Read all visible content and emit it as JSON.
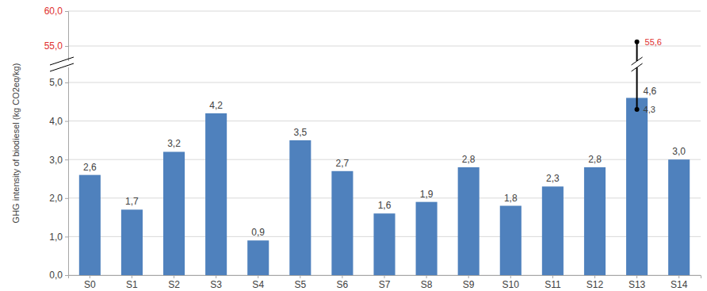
{
  "chart_data": {
    "type": "bar",
    "y_label": "GHG intensity of biodiesel (kg CO2eq/kg)",
    "categories": [
      "S0",
      "S1",
      "S2",
      "S3",
      "S4",
      "S5",
      "S6",
      "S7",
      "S8",
      "S9",
      "S10",
      "S11",
      "S12",
      "S13",
      "S14"
    ],
    "values": [
      2.6,
      1.7,
      3.2,
      4.2,
      0.9,
      3.5,
      2.7,
      1.6,
      1.9,
      2.8,
      1.8,
      2.3,
      2.8,
      4.6,
      3.0
    ],
    "value_labels": [
      "2,6",
      "1,7",
      "3,2",
      "4,2",
      "0,9",
      "3,5",
      "2,7",
      "1,6",
      "1,9",
      "2,8",
      "1,8",
      "2,3",
      "2,8",
      "4,6",
      "3,0"
    ],
    "error_low": [
      null,
      null,
      null,
      null,
      null,
      null,
      null,
      null,
      null,
      null,
      null,
      null,
      null,
      4.3,
      null
    ],
    "error_low_labels": [
      null,
      null,
      null,
      null,
      null,
      null,
      null,
      null,
      null,
      null,
      null,
      null,
      null,
      "4,3",
      null
    ],
    "error_high": [
      null,
      null,
      null,
      null,
      null,
      null,
      null,
      null,
      null,
      null,
      null,
      null,
      null,
      55.6,
      null
    ],
    "error_high_labels": [
      null,
      null,
      null,
      null,
      null,
      null,
      null,
      null,
      null,
      null,
      null,
      null,
      null,
      "55,6",
      null
    ],
    "color": "#4f81bd",
    "ylim": [
      0,
      60
    ],
    "axis_break": [
      5,
      55
    ],
    "yticks": [
      {
        "value": 0,
        "label": "0,0"
      },
      {
        "value": 1,
        "label": "1,0"
      },
      {
        "value": 2,
        "label": "2,0"
      },
      {
        "value": 3,
        "label": "3,0"
      },
      {
        "value": 4,
        "label": "4,0"
      },
      {
        "value": 5,
        "label": "5,0"
      },
      {
        "value": 55,
        "label": "55,0"
      },
      {
        "value": 60,
        "label": "60,0"
      }
    ],
    "grid": true,
    "data_labels": true
  }
}
